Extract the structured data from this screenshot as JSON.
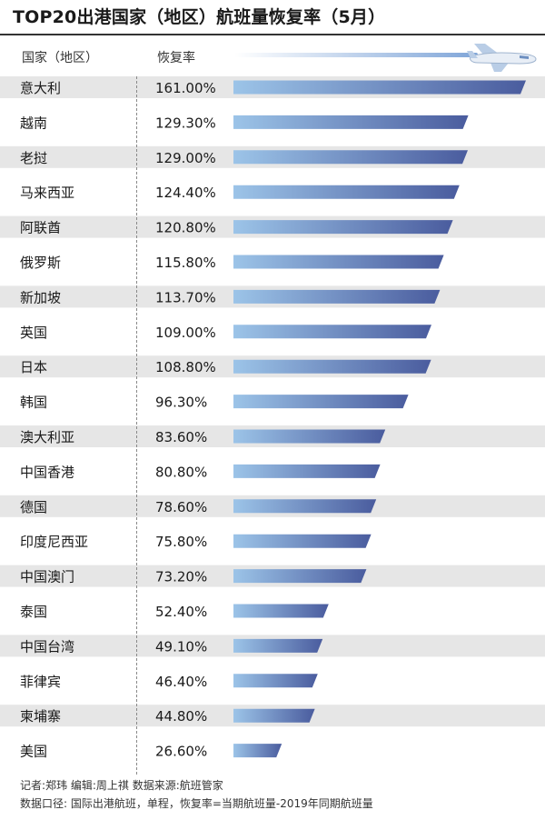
{
  "title": "TOP20出港国家（地区）航班量恢复率（5月）",
  "header": {
    "country": "国家（地区）",
    "rate": "恢复率"
  },
  "chart_data": {
    "type": "bar",
    "orientation": "horizontal",
    "categories": [
      "意大利",
      "越南",
      "老挝",
      "马来西亚",
      "阿联酋",
      "俄罗斯",
      "新加坡",
      "英国",
      "日本",
      "韩国",
      "澳大利亚",
      "中国香港",
      "德国",
      "印度尼西亚",
      "中国澳门",
      "泰国",
      "中国台湾",
      "菲律宾",
      "柬埔寨",
      "美国"
    ],
    "values": [
      161.0,
      129.3,
      129.0,
      124.4,
      120.8,
      115.8,
      113.7,
      109.0,
      108.8,
      96.3,
      83.6,
      80.8,
      78.6,
      75.8,
      73.2,
      52.4,
      49.1,
      46.4,
      44.8,
      26.6
    ],
    "labels": [
      "161.00%",
      "129.30%",
      "129.00%",
      "124.40%",
      "120.80%",
      "115.80%",
      "113.70%",
      "109.00%",
      "108.80%",
      "96.30%",
      "83.60%",
      "80.80%",
      "78.60%",
      "75.80%",
      "73.20%",
      "52.40%",
      "49.10%",
      "46.40%",
      "44.80%",
      "26.60%"
    ],
    "unit": "%",
    "xlim": [
      0,
      161.0
    ],
    "colors": {
      "bar_start": "#9cc4e8",
      "bar_end": "#4a5c9e",
      "row_stripe": "#e6e6e6"
    }
  },
  "footer": {
    "line1": "记者:郑玮  编辑:周上祺  数据来源:航班管家",
    "line2": "数据口径: 国际出港航班，单程，恢复率=当期航班量-2019年同期航班量"
  }
}
